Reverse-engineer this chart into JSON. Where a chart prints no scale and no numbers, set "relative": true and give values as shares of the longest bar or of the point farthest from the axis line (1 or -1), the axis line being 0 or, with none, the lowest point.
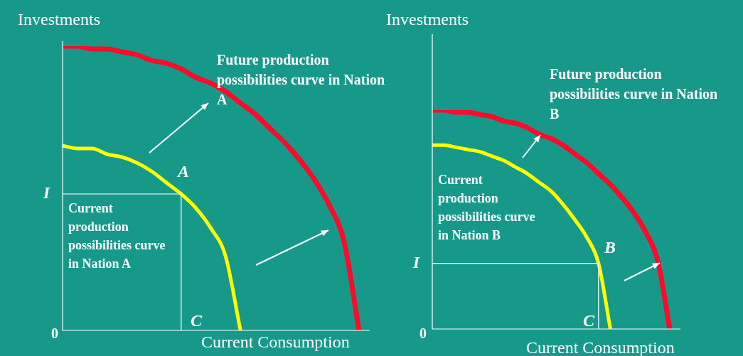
{
  "chart_data": [
    {
      "type": "line",
      "relative": true,
      "ylabel": "Investments",
      "xlabel": "Current Consumption",
      "categories": [
        null,
        null,
        null,
        null,
        null,
        null,
        null,
        null,
        null,
        null,
        null,
        null,
        null,
        null,
        null,
        null,
        null,
        null,
        null,
        null,
        null
      ],
      "series": [
        {
          "color": "#ff0a2a",
          "values": [
            1,
            1,
            0.99,
            0.99,
            0.98,
            0.97,
            0.95,
            0.94,
            0.92,
            0.89,
            0.87,
            0.84,
            0.8,
            0.76,
            0.71,
            0.66,
            0.6,
            0.53,
            0.44,
            0.31,
            0
          ]
        },
        {
          "color": "#ffff00",
          "values": [
            0.65,
            0.64,
            0.64,
            0.62,
            0.61,
            0.59,
            0.56,
            0.52,
            0.48,
            0.43,
            0.36,
            0.26,
            0,
            null,
            null,
            null,
            null,
            null,
            null,
            null,
            null
          ]
        },
        {
          "name": "I",
          "color": "#ffffff",
          "values": [
            0.48,
            0.48,
            0.48,
            0.48,
            0.48,
            0.48,
            0.48,
            0.48,
            0.48,
            null,
            null,
            null,
            null,
            null,
            null,
            null,
            null,
            null,
            null,
            null,
            null
          ]
        }
      ],
      "annotations": [
        "Future production possibilities curve in Nation A",
        "Current production possibilities curve in Nation A",
        "A",
        "C",
        "0"
      ]
    },
    {
      "type": "line",
      "relative": true,
      "ylabel": "Investments",
      "xlabel": "Current Consumption",
      "categories": [
        null,
        null,
        null,
        null,
        null,
        null,
        null,
        null,
        null,
        null,
        null,
        null,
        null,
        null,
        null,
        null,
        null,
        null,
        null,
        null,
        null
      ],
      "series": [
        {
          "color": "#ff0a2a",
          "values": [
            1,
            1,
            0.99,
            0.99,
            0.98,
            0.97,
            0.95,
            0.94,
            0.92,
            0.89,
            0.87,
            0.84,
            0.8,
            0.76,
            0.71,
            0.66,
            0.6,
            0.53,
            0.44,
            0.31,
            0
          ]
        },
        {
          "color": "#ffff00",
          "values": [
            0.84,
            0.84,
            0.83,
            0.82,
            0.81,
            0.79,
            0.77,
            0.74,
            0.71,
            0.67,
            0.63,
            0.57,
            0.5,
            0.42,
            0.3,
            0,
            null,
            null,
            null,
            null,
            null
          ]
        },
        {
          "name": "I",
          "color": "#ffffff",
          "values": [
            0.3,
            0.3,
            0.3,
            0.3,
            0.3,
            0.3,
            0.3,
            0.3,
            0.3,
            0.3,
            0.3,
            0.3,
            0.3,
            0.3,
            0.3,
            null,
            null,
            null,
            null,
            null,
            null
          ]
        }
      ],
      "annotations": [
        "Future production possibilities curve in Nation B",
        "Current production possibilities curve in Nation B",
        "B",
        "C",
        "0"
      ]
    }
  ]
}
